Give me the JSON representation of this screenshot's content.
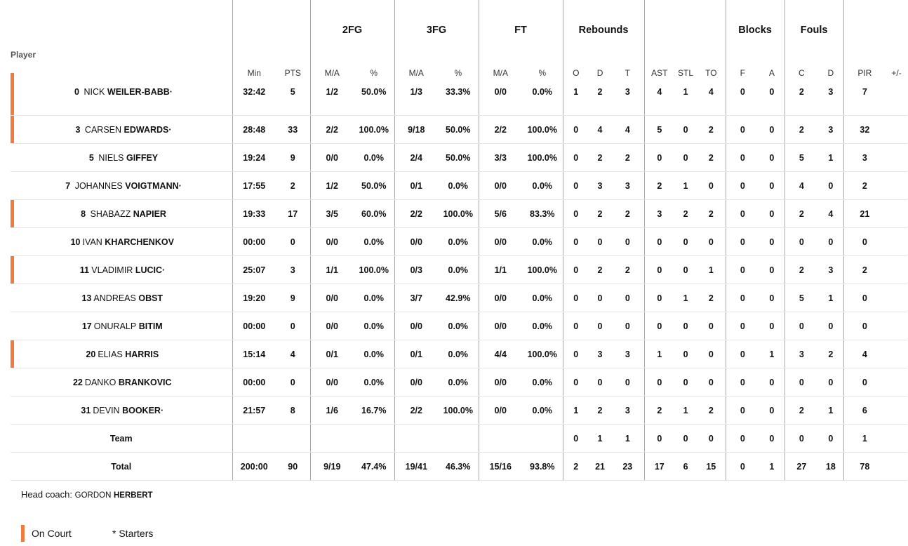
{
  "headers": {
    "player": "Player",
    "groups": {
      "fg2": "2FG",
      "fg3": "3FG",
      "ft": "FT",
      "rebounds": "Rebounds",
      "blocks": "Blocks",
      "fouls": "Fouls"
    },
    "min": "Min",
    "pts": "PTS",
    "ma": "M/A",
    "pct": "%",
    "o": "O",
    "d": "D",
    "t": "T",
    "ast": "AST",
    "stl": "STL",
    "to": "TO",
    "f": "F",
    "a": "A",
    "c": "C",
    "fd": "D",
    "pir": "PIR",
    "pm": "+/-"
  },
  "players": [
    {
      "num": "0",
      "first": "NICK",
      "last": "WEILER-BABB",
      "mark": "·",
      "on_court": true,
      "min": "32:42",
      "pts": "5",
      "fg2_ma": "1/2",
      "fg2_pct": "50.0%",
      "fg3_ma": "1/3",
      "fg3_pct": "33.3%",
      "ft_ma": "0/0",
      "ft_pct": "0.0%",
      "o": "1",
      "d": "2",
      "t": "3",
      "ast": "4",
      "stl": "1",
      "to": "4",
      "bf": "0",
      "ba": "0",
      "fc": "2",
      "fd": "3",
      "pir": "7",
      "pm": ""
    },
    {
      "num": "3",
      "first": "CARSEN",
      "last": "EDWARDS",
      "mark": "·",
      "on_court": true,
      "min": "28:48",
      "pts": "33",
      "fg2_ma": "2/2",
      "fg2_pct": "100.0%",
      "fg3_ma": "9/18",
      "fg3_pct": "50.0%",
      "ft_ma": "2/2",
      "ft_pct": "100.0%",
      "o": "0",
      "d": "4",
      "t": "4",
      "ast": "5",
      "stl": "0",
      "to": "2",
      "bf": "0",
      "ba": "0",
      "fc": "2",
      "fd": "3",
      "pir": "32",
      "pm": ""
    },
    {
      "num": "5",
      "first": "NIELS",
      "last": "GIFFEY",
      "mark": "",
      "on_court": false,
      "min": "19:24",
      "pts": "9",
      "fg2_ma": "0/0",
      "fg2_pct": "0.0%",
      "fg3_ma": "2/4",
      "fg3_pct": "50.0%",
      "ft_ma": "3/3",
      "ft_pct": "100.0%",
      "o": "0",
      "d": "2",
      "t": "2",
      "ast": "0",
      "stl": "0",
      "to": "2",
      "bf": "0",
      "ba": "0",
      "fc": "5",
      "fd": "1",
      "pir": "3",
      "pm": ""
    },
    {
      "num": "7",
      "first": "JOHANNES",
      "last": "VOIGTMANN",
      "mark": "·",
      "on_court": false,
      "min": "17:55",
      "pts": "2",
      "fg2_ma": "1/2",
      "fg2_pct": "50.0%",
      "fg3_ma": "0/1",
      "fg3_pct": "0.0%",
      "ft_ma": "0/0",
      "ft_pct": "0.0%",
      "o": "0",
      "d": "3",
      "t": "3",
      "ast": "2",
      "stl": "1",
      "to": "0",
      "bf": "0",
      "ba": "0",
      "fc": "4",
      "fd": "0",
      "pir": "2",
      "pm": ""
    },
    {
      "num": "8",
      "first": "SHABAZZ",
      "last": "NAPIER",
      "mark": "",
      "on_court": true,
      "min": "19:33",
      "pts": "17",
      "fg2_ma": "3/5",
      "fg2_pct": "60.0%",
      "fg3_ma": "2/2",
      "fg3_pct": "100.0%",
      "ft_ma": "5/6",
      "ft_pct": "83.3%",
      "o": "0",
      "d": "2",
      "t": "2",
      "ast": "3",
      "stl": "2",
      "to": "2",
      "bf": "0",
      "ba": "0",
      "fc": "2",
      "fd": "4",
      "pir": "21",
      "pm": ""
    },
    {
      "num": "10",
      "first": "IVAN",
      "last": "KHARCHENKOV",
      "mark": "",
      "on_court": false,
      "min": "00:00",
      "pts": "0",
      "fg2_ma": "0/0",
      "fg2_pct": "0.0%",
      "fg3_ma": "0/0",
      "fg3_pct": "0.0%",
      "ft_ma": "0/0",
      "ft_pct": "0.0%",
      "o": "0",
      "d": "0",
      "t": "0",
      "ast": "0",
      "stl": "0",
      "to": "0",
      "bf": "0",
      "ba": "0",
      "fc": "0",
      "fd": "0",
      "pir": "0",
      "pm": ""
    },
    {
      "num": "11",
      "first": "VLADIMIR",
      "last": "LUCIC",
      "mark": "·",
      "on_court": true,
      "min": "25:07",
      "pts": "3",
      "fg2_ma": "1/1",
      "fg2_pct": "100.0%",
      "fg3_ma": "0/3",
      "fg3_pct": "0.0%",
      "ft_ma": "1/1",
      "ft_pct": "100.0%",
      "o": "0",
      "d": "2",
      "t": "2",
      "ast": "0",
      "stl": "0",
      "to": "1",
      "bf": "0",
      "ba": "0",
      "fc": "2",
      "fd": "3",
      "pir": "2",
      "pm": ""
    },
    {
      "num": "13",
      "first": "ANDREAS",
      "last": "OBST",
      "mark": "",
      "on_court": false,
      "min": "19:20",
      "pts": "9",
      "fg2_ma": "0/0",
      "fg2_pct": "0.0%",
      "fg3_ma": "3/7",
      "fg3_pct": "42.9%",
      "ft_ma": "0/0",
      "ft_pct": "0.0%",
      "o": "0",
      "d": "0",
      "t": "0",
      "ast": "0",
      "stl": "1",
      "to": "2",
      "bf": "0",
      "ba": "0",
      "fc": "5",
      "fd": "1",
      "pir": "0",
      "pm": ""
    },
    {
      "num": "17",
      "first": "ONURALP",
      "last": "BITIM",
      "mark": "",
      "on_court": false,
      "min": "00:00",
      "pts": "0",
      "fg2_ma": "0/0",
      "fg2_pct": "0.0%",
      "fg3_ma": "0/0",
      "fg3_pct": "0.0%",
      "ft_ma": "0/0",
      "ft_pct": "0.0%",
      "o": "0",
      "d": "0",
      "t": "0",
      "ast": "0",
      "stl": "0",
      "to": "0",
      "bf": "0",
      "ba": "0",
      "fc": "0",
      "fd": "0",
      "pir": "0",
      "pm": ""
    },
    {
      "num": "20",
      "first": "ELIAS",
      "last": "HARRIS",
      "mark": "",
      "on_court": true,
      "min": "15:14",
      "pts": "4",
      "fg2_ma": "0/1",
      "fg2_pct": "0.0%",
      "fg3_ma": "0/1",
      "fg3_pct": "0.0%",
      "ft_ma": "4/4",
      "ft_pct": "100.0%",
      "o": "0",
      "d": "3",
      "t": "3",
      "ast": "1",
      "stl": "0",
      "to": "0",
      "bf": "0",
      "ba": "1",
      "fc": "3",
      "fd": "2",
      "pir": "4",
      "pm": ""
    },
    {
      "num": "22",
      "first": "DANKO",
      "last": "BRANKOVIC",
      "mark": "",
      "on_court": false,
      "min": "00:00",
      "pts": "0",
      "fg2_ma": "0/0",
      "fg2_pct": "0.0%",
      "fg3_ma": "0/0",
      "fg3_pct": "0.0%",
      "ft_ma": "0/0",
      "ft_pct": "0.0%",
      "o": "0",
      "d": "0",
      "t": "0",
      "ast": "0",
      "stl": "0",
      "to": "0",
      "bf": "0",
      "ba": "0",
      "fc": "0",
      "fd": "0",
      "pir": "0",
      "pm": ""
    },
    {
      "num": "31",
      "first": "DEVIN",
      "last": "BOOKER",
      "mark": "·",
      "on_court": false,
      "min": "21:57",
      "pts": "8",
      "fg2_ma": "1/6",
      "fg2_pct": "16.7%",
      "fg3_ma": "2/2",
      "fg3_pct": "100.0%",
      "ft_ma": "0/0",
      "ft_pct": "0.0%",
      "o": "1",
      "d": "2",
      "t": "3",
      "ast": "2",
      "stl": "1",
      "to": "2",
      "bf": "0",
      "ba": "0",
      "fc": "2",
      "fd": "1",
      "pir": "6",
      "pm": ""
    }
  ],
  "team": {
    "label": "Team",
    "min": "",
    "pts": "",
    "fg2_ma": "",
    "fg2_pct": "",
    "fg3_ma": "",
    "fg3_pct": "",
    "ft_ma": "",
    "ft_pct": "",
    "o": "0",
    "d": "1",
    "t": "1",
    "ast": "0",
    "stl": "0",
    "to": "0",
    "bf": "0",
    "ba": "0",
    "fc": "0",
    "fd": "0",
    "pir": "1",
    "pm": ""
  },
  "total": {
    "label": "Total",
    "min": "200:00",
    "pts": "90",
    "fg2_ma": "9/19",
    "fg2_pct": "47.4%",
    "fg3_ma": "19/41",
    "fg3_pct": "46.3%",
    "ft_ma": "15/16",
    "ft_pct": "93.8%",
    "o": "2",
    "d": "21",
    "t": "23",
    "ast": "17",
    "stl": "6",
    "to": "15",
    "bf": "0",
    "ba": "1",
    "fc": "27",
    "fd": "18",
    "pir": "78",
    "pm": ""
  },
  "coach": {
    "label": "Head coach:",
    "first": "GORDON",
    "last": "HERBERT"
  },
  "legend": {
    "on_court": "On Court",
    "starters": "* Starters"
  },
  "colors": {
    "on_court_bar": "#f07a3f",
    "divider": "#a8a8a8",
    "row_line": "#e6e6e6"
  }
}
